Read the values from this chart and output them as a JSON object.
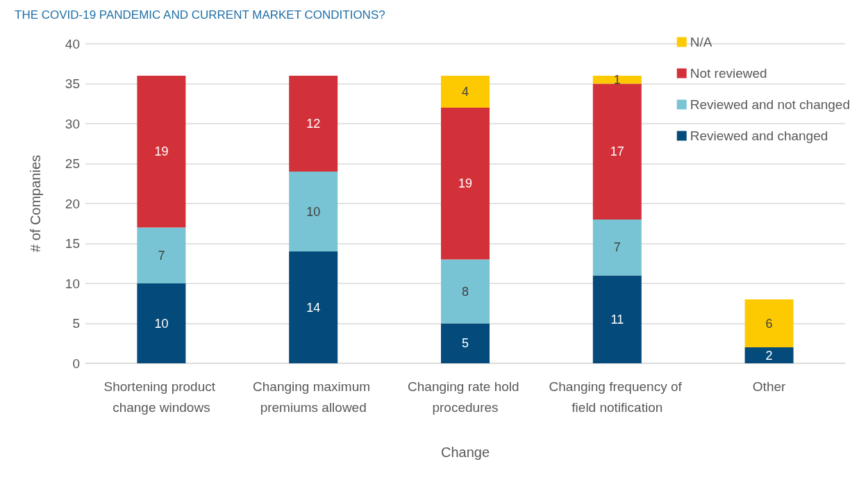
{
  "chart_data": {
    "type": "bar",
    "title": "THE COVID-19 PANDEMIC AND CURRENT MARKET CONDITIONS?",
    "xlabel": "Change",
    "ylabel": "# of Companies",
    "categories": [
      "Shortening product change windows",
      "Changing maximum premiums allowed",
      "Changing rate hold procedures",
      "Changing frequency of field notification",
      "Other"
    ],
    "stacked": true,
    "data_labels": true,
    "grid": "y",
    "legend": "top right",
    "ylim": [
      0,
      40
    ],
    "yticks": [
      0,
      5,
      10,
      15,
      20,
      25,
      30,
      35,
      40
    ],
    "series": [
      {
        "name": "Reviewed and changed",
        "color": "#044a7a",
        "values": [
          10,
          14,
          5,
          11,
          2
        ]
      },
      {
        "name": "Reviewed and not changed",
        "color": "#78c4d4",
        "values": [
          7,
          10,
          8,
          7,
          null
        ]
      },
      {
        "name": "Not reviewed",
        "color": "#d3313a",
        "values": [
          19,
          12,
          19,
          17,
          null
        ]
      },
      {
        "name": "N/A",
        "color": "#fdc900",
        "values": [
          null,
          null,
          4,
          1,
          6
        ]
      }
    ]
  }
}
